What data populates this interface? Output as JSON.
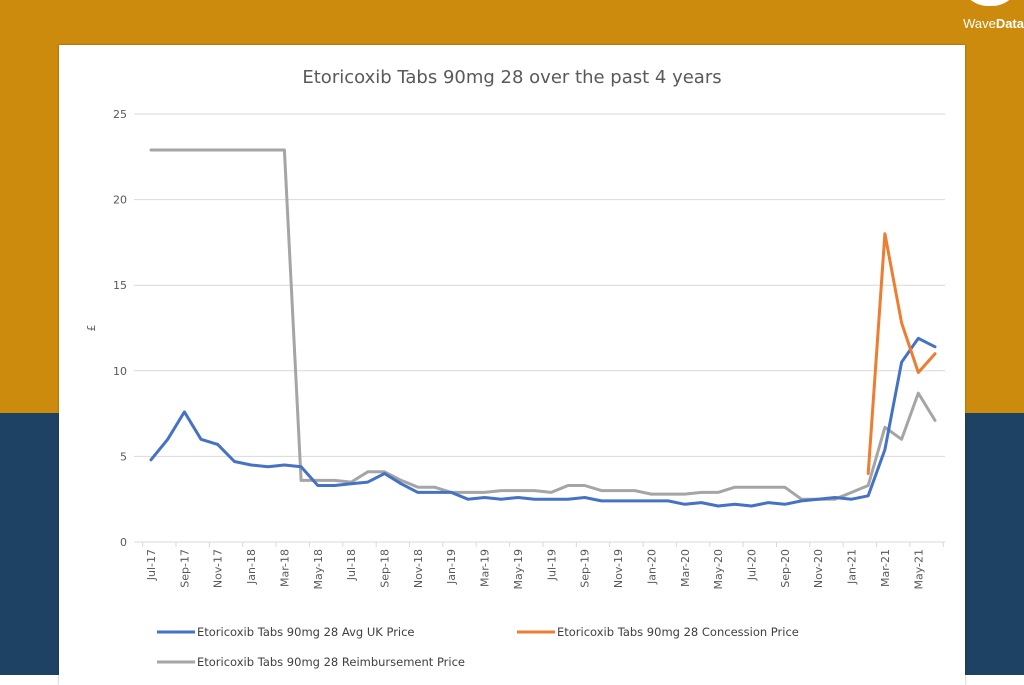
{
  "brand": {
    "logo_text_light": "Wave",
    "logo_text_bold": "Data"
  },
  "colors": {
    "bg_top": "#CD8B0E",
    "bg_bottom": "#1E4263",
    "avg": "#4472C4",
    "concession": "#ED7D31",
    "reimbursement": "#A5A5A5"
  },
  "chart_data": {
    "type": "line",
    "title": "Etoricoxib Tabs 90mg 28 over the past 4 years",
    "xlabel": "",
    "ylabel": "£",
    "ylim": [
      0,
      25
    ],
    "yticks": [
      0,
      5,
      10,
      15,
      20,
      25
    ],
    "grid": true,
    "legend_position": "bottom",
    "x_tick_labels": [
      "Jul-17",
      "Sep-17",
      "Nov-17",
      "Jan-18",
      "Mar-18",
      "May-18",
      "Jul-18",
      "Sep-18",
      "Nov-18",
      "Jan-19",
      "Mar-19",
      "May-19",
      "Jul-19",
      "Sep-19",
      "Nov-19",
      "Jan-20",
      "Mar-20",
      "May-20",
      "Jul-20",
      "Sep-20",
      "Nov-20",
      "Jan-21",
      "Mar-21",
      "May-21"
    ],
    "categories": [
      "Jul-17",
      "Aug-17",
      "Sep-17",
      "Oct-17",
      "Nov-17",
      "Dec-17",
      "Jan-18",
      "Feb-18",
      "Mar-18",
      "Apr-18",
      "May-18",
      "Jun-18",
      "Jul-18",
      "Aug-18",
      "Sep-18",
      "Oct-18",
      "Nov-18",
      "Dec-18",
      "Jan-19",
      "Feb-19",
      "Mar-19",
      "Apr-19",
      "May-19",
      "Jun-19",
      "Jul-19",
      "Aug-19",
      "Sep-19",
      "Oct-19",
      "Nov-19",
      "Dec-19",
      "Jan-20",
      "Feb-20",
      "Mar-20",
      "Apr-20",
      "May-20",
      "Jun-20",
      "Jul-20",
      "Aug-20",
      "Sep-20",
      "Oct-20",
      "Nov-20",
      "Dec-20",
      "Jan-21",
      "Feb-21",
      "Mar-21",
      "Apr-21",
      "May-21",
      "Jun-21"
    ],
    "series": [
      {
        "name": "Etoricoxib Tabs 90mg 28 Avg UK Price",
        "color": "#4472C4",
        "values": [
          4.8,
          6.0,
          7.6,
          6.0,
          5.7,
          4.7,
          4.5,
          4.4,
          4.5,
          4.4,
          3.3,
          3.3,
          3.4,
          3.5,
          4.0,
          3.4,
          2.9,
          2.9,
          2.9,
          2.5,
          2.6,
          2.5,
          2.6,
          2.5,
          2.5,
          2.5,
          2.6,
          2.4,
          2.4,
          2.4,
          2.4,
          2.4,
          2.2,
          2.3,
          2.1,
          2.2,
          2.1,
          2.3,
          2.2,
          2.4,
          2.5,
          2.6,
          2.5,
          2.7,
          5.4,
          10.5,
          11.9,
          11.4
        ]
      },
      {
        "name": "Etoricoxib Tabs 90mg 28 Concession Price",
        "color": "#ED7D31",
        "values": [
          null,
          null,
          null,
          null,
          null,
          null,
          null,
          null,
          null,
          null,
          null,
          null,
          null,
          null,
          null,
          null,
          null,
          null,
          null,
          null,
          null,
          null,
          null,
          null,
          null,
          null,
          null,
          null,
          null,
          null,
          null,
          null,
          null,
          null,
          null,
          null,
          null,
          null,
          null,
          null,
          null,
          null,
          null,
          4.0,
          18.0,
          12.8,
          9.9,
          11.0
        ]
      },
      {
        "name": "Etoricoxib Tabs 90mg 28 Reimbursement Price",
        "color": "#A5A5A5",
        "values": [
          22.9,
          22.9,
          22.9,
          22.9,
          22.9,
          22.9,
          22.9,
          22.9,
          22.9,
          3.6,
          3.6,
          3.6,
          3.5,
          4.1,
          4.1,
          3.6,
          3.2,
          3.2,
          2.9,
          2.9,
          2.9,
          3.0,
          3.0,
          3.0,
          2.9,
          3.3,
          3.3,
          3.0,
          3.0,
          3.0,
          2.8,
          2.8,
          2.8,
          2.9,
          2.9,
          3.2,
          3.2,
          3.2,
          3.2,
          2.5,
          2.5,
          2.5,
          2.9,
          3.3,
          6.7,
          6.0,
          8.7,
          7.1
        ]
      }
    ]
  }
}
